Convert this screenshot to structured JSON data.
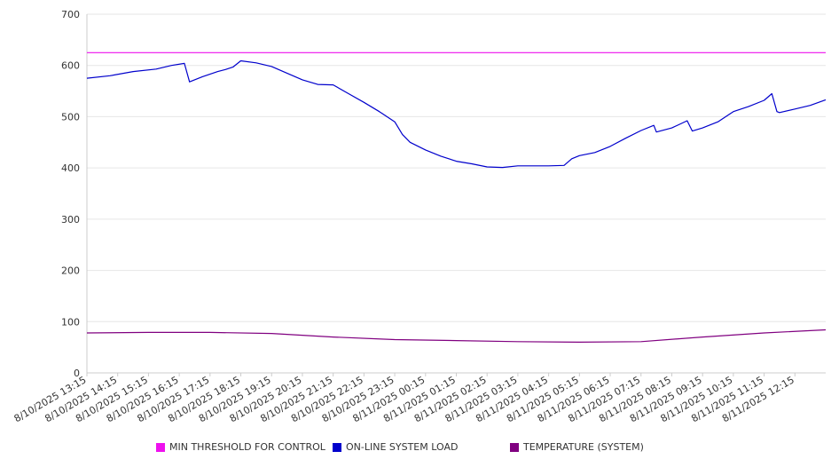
{
  "chart_data": {
    "type": "line",
    "title": "",
    "xlabel": "",
    "ylabel": "",
    "ylim": [
      0,
      700
    ],
    "y_ticks": [
      0,
      100,
      200,
      300,
      400,
      500,
      600,
      700
    ],
    "grid": true,
    "legend_position": "bottom",
    "x_tick_labels": [
      "8/10/2025 13:15",
      "8/10/2025 14:15",
      "8/10/2025 15:15",
      "8/10/2025 16:15",
      "8/10/2025 17:15",
      "8/10/2025 18:15",
      "8/10/2025 19:15",
      "8/10/2025 20:15",
      "8/10/2025 21:15",
      "8/10/2025 22:15",
      "8/10/2025 23:15",
      "8/11/2025 00:15",
      "8/11/2025 01:15",
      "8/11/2025 02:15",
      "8/11/2025 03:15",
      "8/11/2025 04:15",
      "8/11/2025 05:15",
      "8/11/2025 06:15",
      "8/11/2025 07:15",
      "8/11/2025 08:15",
      "8/11/2025 09:15",
      "8/11/2025 10:15",
      "8/11/2025 11:15",
      "8/11/2025 12:15"
    ],
    "x_start": "8/10/2025 13:15",
    "x_end": "8/11/2025 13:15",
    "series": [
      {
        "name": "MIN THRESHOLD FOR CONTROL",
        "color": "#ee11ee",
        "x": [
          "8/10/2025 13:15",
          "8/11/2025 13:15"
        ],
        "values": [
          625,
          625
        ]
      },
      {
        "name": "ON-LINE SYSTEM LOAD",
        "color": "#0000cc",
        "x": [
          "8/10/2025 13:15",
          "8/10/2025 14:00",
          "8/10/2025 14:45",
          "8/10/2025 15:30",
          "8/10/2025 16:00",
          "8/10/2025 16:25",
          "8/10/2025 16:35",
          "8/10/2025 17:00",
          "8/10/2025 17:30",
          "8/10/2025 17:45",
          "8/10/2025 18:00",
          "8/10/2025 18:15",
          "8/10/2025 18:45",
          "8/10/2025 19:15",
          "8/10/2025 19:45",
          "8/10/2025 20:15",
          "8/10/2025 20:45",
          "8/10/2025 21:15",
          "8/10/2025 21:45",
          "8/10/2025 22:15",
          "8/10/2025 22:45",
          "8/10/2025 23:15",
          "8/10/2025 23:30",
          "8/10/2025 23:45",
          "8/11/2025 00:15",
          "8/11/2025 00:45",
          "8/11/2025 01:15",
          "8/11/2025 01:45",
          "8/11/2025 02:15",
          "8/11/2025 02:45",
          "8/11/2025 03:15",
          "8/11/2025 03:45",
          "8/11/2025 04:15",
          "8/11/2025 04:45",
          "8/11/2025 05:00",
          "8/11/2025 05:15",
          "8/11/2025 05:45",
          "8/11/2025 06:15",
          "8/11/2025 06:45",
          "8/11/2025 07:15",
          "8/11/2025 07:40",
          "8/11/2025 07:45",
          "8/11/2025 08:15",
          "8/11/2025 08:45",
          "8/11/2025 08:55",
          "8/11/2025 09:15",
          "8/11/2025 09:45",
          "8/11/2025 10:15",
          "8/11/2025 10:45",
          "8/11/2025 11:15",
          "8/11/2025 11:30",
          "8/11/2025 11:40",
          "8/11/2025 11:45",
          "8/11/2025 12:15",
          "8/11/2025 12:45",
          "8/11/2025 13:15"
        ],
        "values": [
          575,
          580,
          588,
          593,
          600,
          604,
          568,
          578,
          588,
          592,
          597,
          609,
          605,
          598,
          585,
          572,
          563,
          562,
          545,
          528,
          510,
          490,
          465,
          450,
          435,
          423,
          413,
          408,
          402,
          401,
          404,
          404,
          404,
          405,
          418,
          424,
          430,
          442,
          458,
          473,
          483,
          470,
          478,
          492,
          472,
          478,
          490,
          510,
          520,
          532,
          545,
          510,
          508,
          515,
          522,
          533
        ]
      },
      {
        "name": "TEMPERATURE (SYSTEM)",
        "color": "#800080",
        "x": [
          "8/10/2025 13:15",
          "8/10/2025 15:15",
          "8/10/2025 17:15",
          "8/10/2025 19:15",
          "8/10/2025 21:15",
          "8/10/2025 23:15",
          "8/11/2025 01:15",
          "8/11/2025 03:15",
          "8/11/2025 05:15",
          "8/11/2025 07:15",
          "8/11/2025 09:15",
          "8/11/2025 11:15",
          "8/11/2025 13:15"
        ],
        "values": [
          78,
          79,
          79,
          77,
          70,
          65,
          63,
          61,
          60,
          61,
          70,
          78,
          84
        ]
      }
    ]
  }
}
